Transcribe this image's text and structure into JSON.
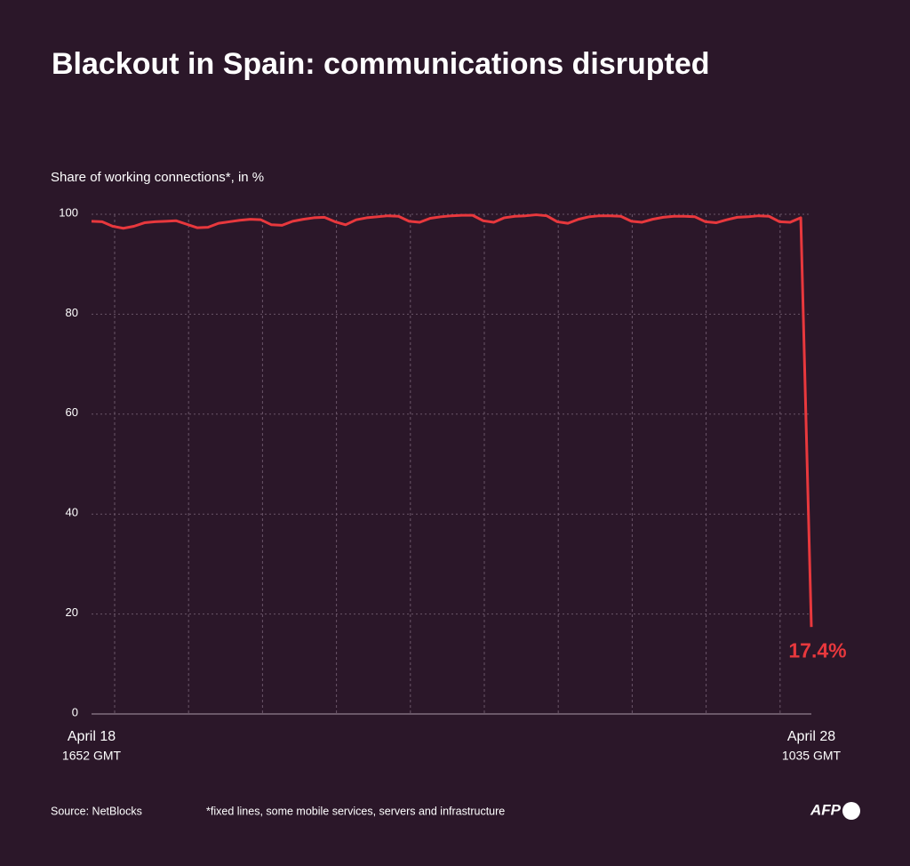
{
  "chart_data": {
    "type": "line",
    "title": "Blackout in Spain: communications disrupted",
    "y_axis_label": "Share of working connections*, in %",
    "categories": [
      "April 18",
      null,
      null,
      null,
      null,
      null,
      null,
      null,
      null,
      null,
      null,
      null,
      null,
      null,
      null,
      null,
      null,
      null,
      null,
      null,
      null,
      null,
      null,
      null,
      null,
      null,
      null,
      null,
      null,
      null,
      null,
      null,
      null,
      null,
      null,
      null,
      null,
      null,
      null,
      null,
      null,
      null,
      null,
      null,
      null,
      null,
      null,
      null,
      null,
      null,
      null,
      null,
      null,
      null,
      null,
      null,
      null,
      null,
      null,
      null,
      null,
      null,
      null,
      null,
      null,
      null,
      null,
      null,
      "April 28"
    ],
    "category_times": [
      "1652 GMT",
      null,
      null,
      null,
      null,
      null,
      null,
      null,
      null,
      null,
      null,
      null,
      null,
      null,
      null,
      null,
      null,
      null,
      null,
      null,
      null,
      null,
      null,
      null,
      null,
      null,
      null,
      null,
      null,
      null,
      null,
      null,
      null,
      null,
      null,
      null,
      null,
      null,
      null,
      null,
      null,
      null,
      null,
      null,
      null,
      null,
      null,
      null,
      null,
      null,
      null,
      null,
      null,
      null,
      null,
      null,
      null,
      null,
      null,
      null,
      null,
      null,
      null,
      null,
      null,
      null,
      null,
      null,
      "1035 GMT"
    ],
    "series": [
      {
        "name": "Share of working connections",
        "color": "#e8383d",
        "values": [
          98.6,
          98.5,
          97.6,
          97.2,
          97.6,
          98.3,
          98.5,
          98.6,
          98.7,
          98.0,
          97.3,
          97.4,
          98.2,
          98.5,
          98.8,
          99.0,
          98.9,
          97.9,
          97.8,
          98.6,
          99.0,
          99.3,
          99.4,
          98.5,
          97.9,
          98.9,
          99.3,
          99.5,
          99.7,
          99.6,
          98.6,
          98.4,
          99.2,
          99.5,
          99.7,
          99.8,
          99.8,
          98.7,
          98.4,
          99.3,
          99.6,
          99.7,
          99.9,
          99.7,
          98.5,
          98.2,
          99.0,
          99.5,
          99.7,
          99.7,
          99.6,
          98.6,
          98.4,
          99.0,
          99.4,
          99.6,
          99.6,
          99.5,
          98.5,
          98.3,
          98.9,
          99.4,
          99.5,
          99.7,
          99.6,
          98.5,
          98.4,
          99.3,
          17.4
        ],
        "value_labels": [
          null,
          null,
          null,
          null,
          null,
          null,
          null,
          null,
          null,
          null,
          null,
          null,
          null,
          null,
          null,
          null,
          null,
          null,
          null,
          null,
          null,
          null,
          null,
          null,
          null,
          null,
          null,
          null,
          null,
          null,
          null,
          null,
          null,
          null,
          null,
          null,
          null,
          null,
          null,
          null,
          null,
          null,
          null,
          null,
          null,
          null,
          null,
          null,
          null,
          null,
          null,
          null,
          null,
          null,
          null,
          null,
          null,
          null,
          null,
          null,
          null,
          null,
          null,
          null,
          null,
          null,
          null,
          null,
          "17.4%"
        ]
      }
    ],
    "ylim": [
      0,
      100
    ],
    "yticks": [
      0,
      20,
      40,
      60,
      80,
      100
    ],
    "grid": true,
    "source": "Source: NetBlocks",
    "footnote": "*fixed lines, some mobile services, servers and infrastructure",
    "logo": "AFP"
  }
}
